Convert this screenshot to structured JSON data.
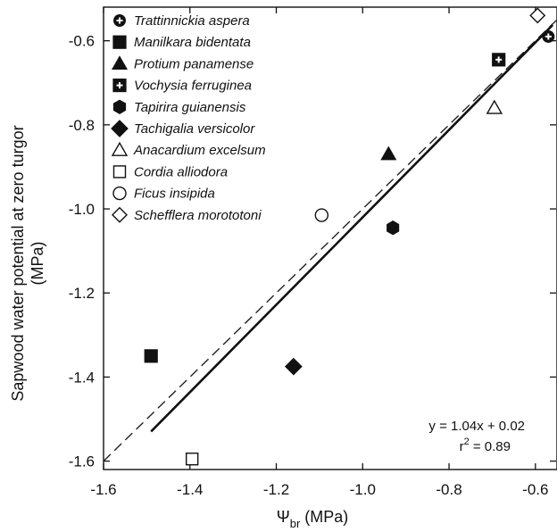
{
  "chart_data": {
    "type": "scatter",
    "xlabel": "Ψbr (MPa)",
    "xlabel_main": "Ψ",
    "xlabel_sub": "br",
    "xlabel_unit": " (MPa)",
    "ylabel_line1": "Sapwood water potential at zero turgor",
    "ylabel_line2": "(MPa)",
    "xlim": [
      -1.6,
      -0.55
    ],
    "ylim": [
      -1.62,
      -0.52
    ],
    "xticks": [
      -1.6,
      -1.4,
      -1.2,
      -1.0,
      -0.8,
      -0.6
    ],
    "xtick_labels": [
      "-1.6",
      "-1.4",
      "-1.2",
      "-1.0",
      "-0.8",
      "-0.6"
    ],
    "yticks": [
      -1.6,
      -1.4,
      -1.2,
      -1.0,
      -0.8,
      -0.6
    ],
    "ytick_labels": [
      "-1.6",
      "-1.4",
      "-1.2",
      "-1.0",
      "-0.8",
      "-0.6"
    ],
    "grid": false,
    "legend_position": "top-left",
    "series": [
      {
        "name": "Trattinnickia aspera",
        "marker": "circle-plus",
        "points": [
          {
            "x": -0.57,
            "y": -0.59
          }
        ]
      },
      {
        "name": "Manilkara bidentata",
        "marker": "square-filled",
        "points": [
          {
            "x": -1.49,
            "y": -1.35
          }
        ]
      },
      {
        "name": "Protium panamense",
        "marker": "triangle-filled",
        "points": [
          {
            "x": -0.94,
            "y": -0.87
          }
        ]
      },
      {
        "name": "Vochysia ferruginea",
        "marker": "square-plus",
        "points": [
          {
            "x": -0.685,
            "y": -0.645
          }
        ]
      },
      {
        "name": "Tapirira guianensis",
        "marker": "hexagon-filled",
        "points": [
          {
            "x": -0.93,
            "y": -1.045
          }
        ]
      },
      {
        "name": "Tachigalia versicolor",
        "marker": "diamond-filled",
        "points": [
          {
            "x": -1.16,
            "y": -1.375
          }
        ]
      },
      {
        "name": "Anacardium excelsum",
        "marker": "triangle-open",
        "points": [
          {
            "x": -0.695,
            "y": -0.76
          }
        ]
      },
      {
        "name": "Cordia alliodora",
        "marker": "square-open",
        "points": [
          {
            "x": -1.395,
            "y": -1.595
          }
        ]
      },
      {
        "name": "Ficus insipida",
        "marker": "circle-open",
        "points": [
          {
            "x": -1.095,
            "y": -1.015
          }
        ]
      },
      {
        "name": "Schefflera morototoni",
        "marker": "diamond-open",
        "points": [
          {
            "x": -0.595,
            "y": -0.54
          }
        ]
      }
    ],
    "regression_line": {
      "style": "solid",
      "x_start": -1.49,
      "x_end": -0.56
    },
    "identity_line": {
      "style": "dashed"
    },
    "annotation": {
      "equation": "y = 1.04x + 0.02",
      "r2_prefix": "r",
      "r2_sup": "2",
      "r2_suffix": " = 0.89"
    }
  }
}
